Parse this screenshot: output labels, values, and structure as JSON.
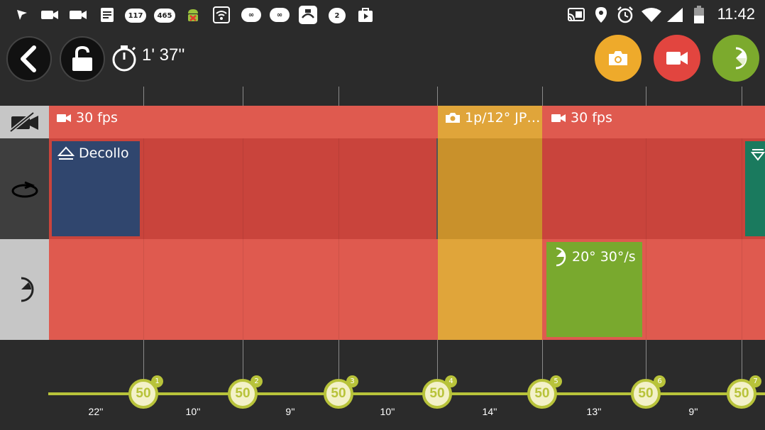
{
  "status_bar": {
    "notifications": [
      {
        "icon": "navigation-icon"
      },
      {
        "icon": "video-camera-icon"
      },
      {
        "icon": "video-camera-icon"
      },
      {
        "icon": "document-icon"
      },
      {
        "icon": "badge-icon",
        "text": "117"
      },
      {
        "icon": "badge-icon",
        "text": "465"
      },
      {
        "icon": "android-icon"
      },
      {
        "icon": "wifi-icon"
      },
      {
        "icon": "infinity-icon",
        "text": "∞"
      },
      {
        "icon": "infinity-icon",
        "text": "∞"
      },
      {
        "icon": "app-icon"
      },
      {
        "icon": "badge-icon",
        "text": "2"
      },
      {
        "icon": "play-store-icon"
      }
    ],
    "system": [
      "cast-icon",
      "location-icon",
      "alarm-icon",
      "wifi-icon",
      "signal-icon",
      "battery-icon"
    ],
    "time": "11:42"
  },
  "toolbar": {
    "timer": "1' 37''",
    "colors": {
      "photo": "#eeaa2b",
      "video": "#e2453f",
      "pan": "#7caa2d"
    }
  },
  "tracks": {
    "camera": {
      "segments": [
        {
          "label": "30 fps",
          "icon": "video-camera-icon",
          "color": "#df5a4f"
        },
        {
          "label": "1p/12° JP…",
          "icon": "photo-camera-icon",
          "color": "#e0a53a"
        },
        {
          "label": "30 fps",
          "icon": "video-camera-icon",
          "color": "#df5a4f"
        }
      ]
    },
    "motion": {
      "segments": [
        {
          "label": "Decollo",
          "icon": "takeoff-icon",
          "color": "#30466e"
        }
      ]
    },
    "pan": {
      "segments": [
        {
          "label": "20° 30°/s",
          "icon": "pan-icon",
          "color": "#79a92e"
        }
      ]
    }
  },
  "keyframes": [
    {
      "value": "50",
      "index": "1"
    },
    {
      "value": "50",
      "index": "2"
    },
    {
      "value": "50",
      "index": "3"
    },
    {
      "value": "50",
      "index": "4"
    },
    {
      "value": "50",
      "index": "5"
    },
    {
      "value": "50",
      "index": "6"
    },
    {
      "value": "50",
      "index": "7"
    }
  ],
  "durations": [
    "22''",
    "10''",
    "9''",
    "10''",
    "14''",
    "13''",
    "9''"
  ]
}
